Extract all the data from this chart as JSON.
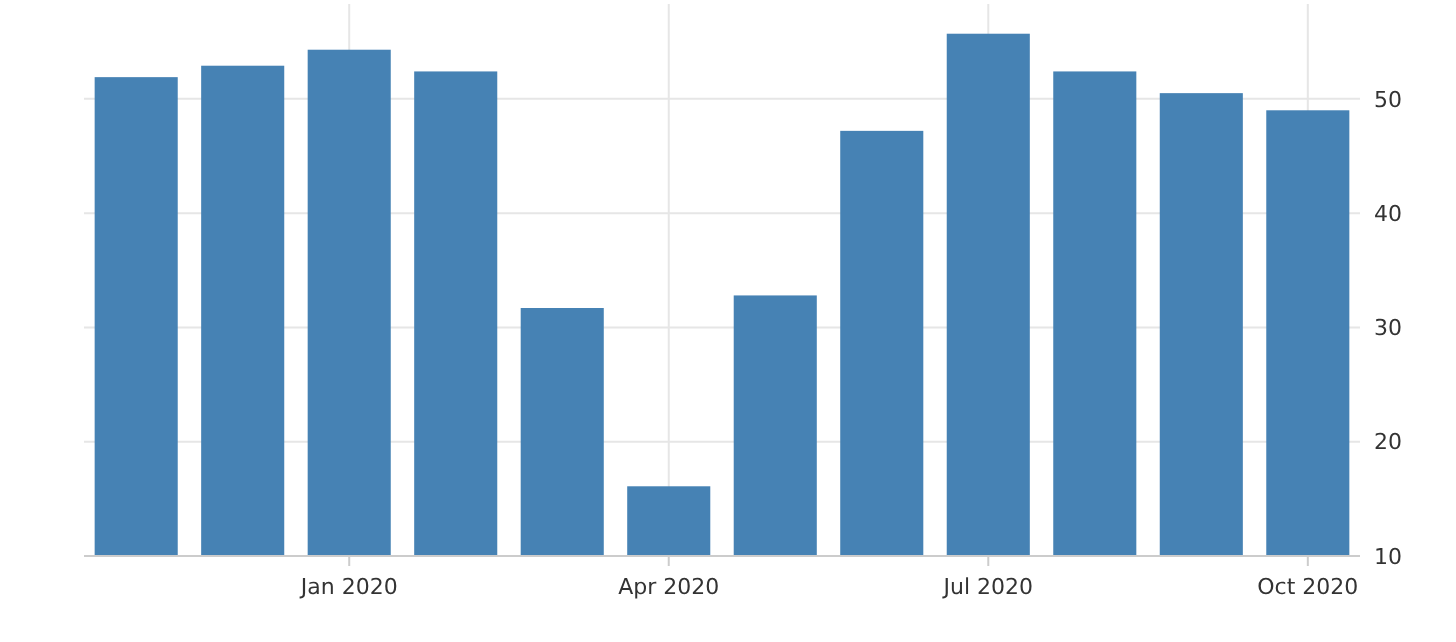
{
  "chart_data": {
    "type": "bar",
    "categories": [
      null,
      null,
      "Jan 2020",
      null,
      null,
      "Apr 2020",
      null,
      null,
      "Jul 2020",
      null,
      null,
      "Oct 2020"
    ],
    "values": [
      51.9,
      52.9,
      54.3,
      52.4,
      31.7,
      16.1,
      32.8,
      47.2,
      55.7,
      52.4,
      50.5,
      49.0
    ],
    "color": "#4682b4",
    "ylim": [
      10,
      58.3
    ],
    "yticks": [
      10,
      20,
      30,
      40,
      50
    ],
    "grid": true
  }
}
